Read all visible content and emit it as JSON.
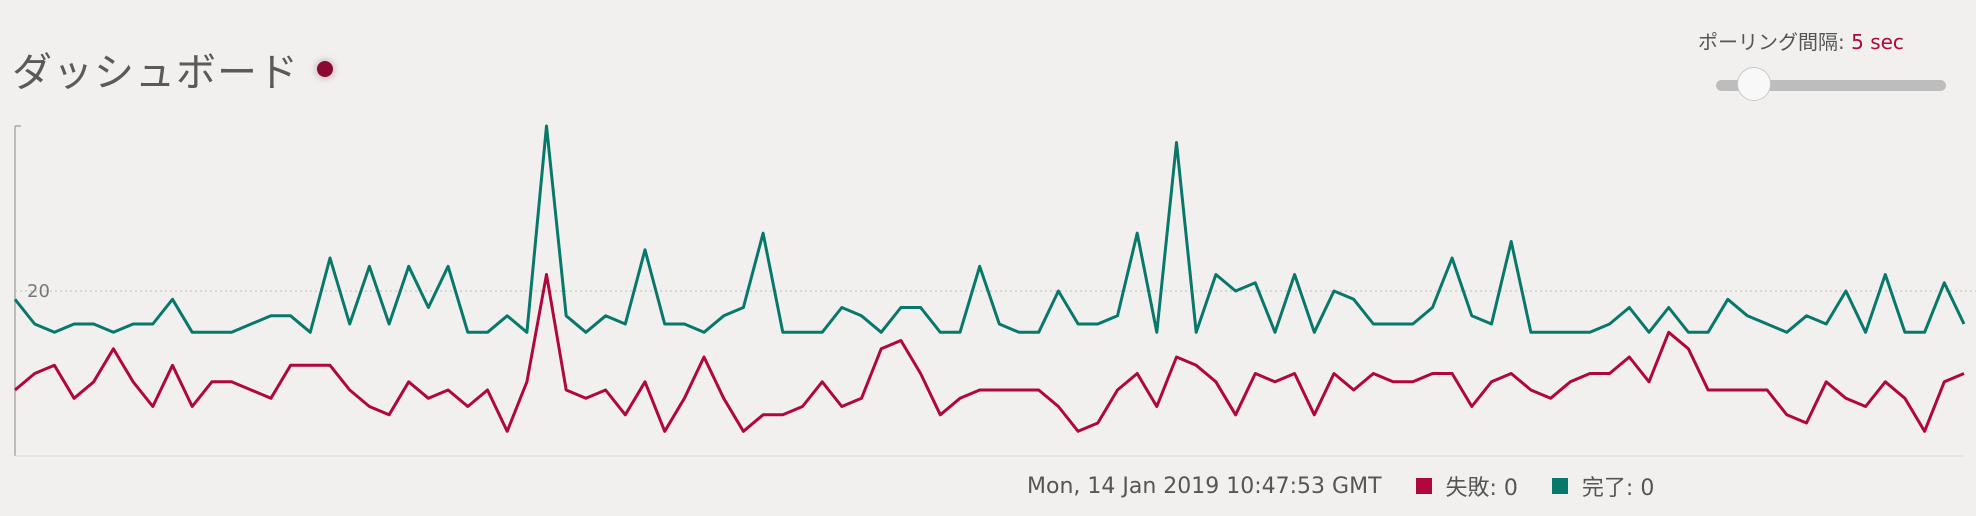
{
  "header": {
    "title": "ダッシュボード",
    "polling_label": "ポーリング間隔: ",
    "polling_value": "5 sec"
  },
  "legend": {
    "timestamp": "Mon, 14 Jan 2019 10:47:53 GMT",
    "failed_label": "失敗: 0",
    "completed_label": "完了: 0"
  },
  "colors": {
    "failed": "#b0073e",
    "completed": "#08786b",
    "accent": "#b0073e"
  },
  "chart_data": {
    "type": "line",
    "ylim": [
      0,
      40
    ],
    "yticks": [
      20
    ],
    "grid": true,
    "x": [
      0,
      1,
      2,
      3,
      4,
      5,
      6,
      7,
      8,
      9,
      10,
      11,
      12,
      13,
      14,
      15,
      16,
      17,
      18,
      19,
      20,
      21,
      22,
      23,
      24,
      25,
      26,
      27,
      28,
      29,
      30,
      31,
      32,
      33,
      34,
      35,
      36,
      37,
      38,
      39,
      40,
      41,
      42,
      43,
      44,
      45,
      46,
      47,
      48,
      49,
      50,
      51,
      52,
      53,
      54,
      55,
      56,
      57,
      58,
      59,
      60,
      61,
      62,
      63,
      64,
      65,
      66,
      67,
      68,
      69,
      70,
      71,
      72,
      73,
      74,
      75,
      76,
      77,
      78,
      79,
      80,
      81,
      82,
      83,
      84,
      85,
      86,
      87,
      88,
      89,
      90,
      91,
      92,
      93,
      94,
      95,
      96,
      97,
      98,
      99
    ],
    "series": [
      {
        "name": "完了",
        "color": "#08786b",
        "values": [
          19,
          16,
          15,
          16,
          16,
          15,
          16,
          16,
          19,
          15,
          15,
          15,
          16,
          17,
          17,
          15,
          24,
          16,
          23,
          16,
          23,
          18,
          23,
          15,
          15,
          17,
          15,
          40,
          17,
          15,
          17,
          16,
          25,
          16,
          16,
          15,
          17,
          18,
          27,
          15,
          15,
          15,
          18,
          17,
          15,
          18,
          18,
          15,
          15,
          23,
          16,
          15,
          15,
          20,
          16,
          16,
          17,
          27,
          15,
          38,
          15,
          22,
          20,
          21,
          15,
          22,
          15,
          20,
          19,
          16,
          16,
          16,
          18,
          24,
          17,
          16,
          26,
          15,
          15,
          15,
          15,
          16,
          18,
          15,
          18,
          15,
          15,
          19,
          17,
          16,
          15,
          17,
          16,
          20,
          15,
          22,
          15,
          15,
          21,
          16
        ]
      },
      {
        "name": "失敗",
        "color": "#b0073e",
        "values": [
          8,
          10,
          11,
          7,
          9,
          13,
          9,
          6,
          11,
          6,
          9,
          9,
          8,
          7,
          11,
          11,
          11,
          8,
          6,
          5,
          9,
          7,
          8,
          6,
          8,
          3,
          9,
          22,
          8,
          7,
          8,
          5,
          9,
          3,
          7,
          12,
          7,
          3,
          5,
          5,
          6,
          9,
          6,
          7,
          13,
          14,
          10,
          5,
          7,
          8,
          8,
          8,
          8,
          6,
          3,
          4,
          8,
          10,
          6,
          12,
          11,
          9,
          5,
          10,
          9,
          10,
          5,
          10,
          8,
          10,
          9,
          9,
          10,
          10,
          6,
          9,
          10,
          8,
          7,
          9,
          10,
          10,
          12,
          9,
          15,
          13,
          8,
          8,
          8,
          8,
          5,
          4,
          9,
          7,
          6,
          9,
          7,
          3,
          9,
          10
        ]
      }
    ]
  }
}
